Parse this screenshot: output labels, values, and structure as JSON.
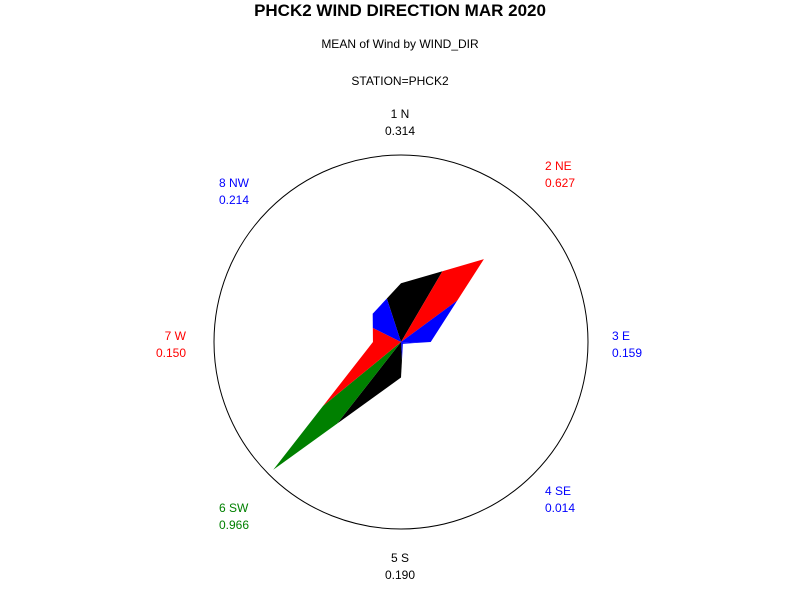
{
  "header": {
    "title": "PHCK2 WIND DIRECTION MAR 2020",
    "subtitle": "MEAN of Wind by WIND_DIR",
    "station": "STATION=PHCK2"
  },
  "chart_data": {
    "type": "polar-star",
    "title": "PHCK2 WIND DIRECTION MAR 2020",
    "subtitle": "MEAN of Wind by WIND_DIR",
    "group": "STATION=PHCK2",
    "rmax": 1.0,
    "categories": [
      {
        "label": "1 N",
        "value_text": "0.314",
        "value": 0.314,
        "color": "#000000"
      },
      {
        "label": "2 NE",
        "value_text": "0.627",
        "value": 0.627,
        "color": "#ff0000"
      },
      {
        "label": "3 E",
        "value_text": "0.159",
        "value": 0.159,
        "color": "#0000ff"
      },
      {
        "label": "4 SE",
        "value_text": "0.014",
        "value": 0.014,
        "color": "#0000ff"
      },
      {
        "label": "5 S",
        "value_text": "0.190",
        "value": 0.19,
        "color": "#000000"
      },
      {
        "label": "6 SW",
        "value_text": "0.966",
        "value": 0.966,
        "color": "#008000"
      },
      {
        "label": "7 W",
        "value_text": "0.150",
        "value": 0.15,
        "color": "#ff0000"
      },
      {
        "label": "8 NW",
        "value_text": "0.214",
        "value": 0.214,
        "color": "#0000ff"
      }
    ]
  }
}
